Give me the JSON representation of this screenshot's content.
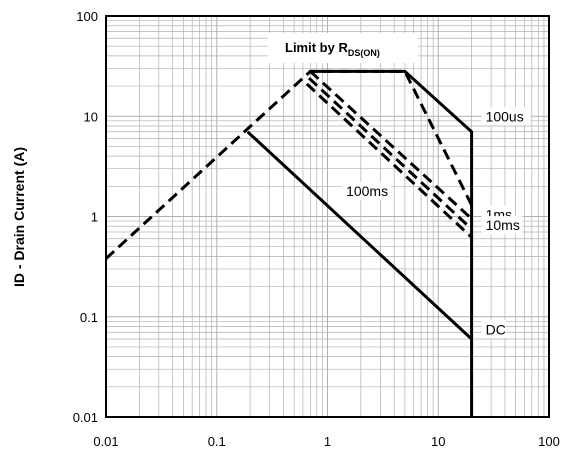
{
  "chart_data": {
    "type": "line",
    "title": "",
    "xlabel": "",
    "ylabel": "ID - Drain Current (A)",
    "x_scale": "log",
    "y_scale": "log",
    "xlim": [
      0.01,
      100
    ],
    "ylim": [
      0.01,
      100
    ],
    "x_ticks": [
      "0.01",
      "0.1",
      "1",
      "10",
      "100"
    ],
    "y_ticks": [
      "100",
      "10",
      "1",
      "0.1",
      "0.01"
    ],
    "grid": true,
    "limit_label": {
      "main": "Limit by R",
      "sub": "DS(ON)"
    },
    "series": [
      {
        "name": "100us",
        "style": "dashed",
        "points": [
          [
            0.01,
            0.38
          ],
          [
            0.7,
            28
          ],
          [
            5,
            28
          ],
          [
            20,
            1.3
          ]
        ]
      },
      {
        "name": "1ms",
        "style": "dashed",
        "points": [
          [
            0.7,
            28
          ],
          [
            20,
            0.95
          ]
        ]
      },
      {
        "name": "10ms",
        "style": "dashed",
        "points": [
          [
            0.68,
            24
          ],
          [
            20,
            0.75
          ]
        ]
      },
      {
        "name": "100ms",
        "style": "dashed",
        "points": [
          [
            0.65,
            21
          ],
          [
            20,
            0.62
          ]
        ]
      },
      {
        "name": "DC",
        "style": "solid",
        "points": [
          [
            0.19,
            7
          ],
          [
            20,
            0.06
          ]
        ]
      },
      {
        "name": "",
        "style": "solid",
        "points": [
          [
            0.7,
            28
          ],
          [
            5,
            28
          ],
          [
            20,
            7
          ],
          [
            20,
            0.01
          ]
        ]
      }
    ],
    "annotations": [
      {
        "text": "100us",
        "x": 20,
        "y": 10
      },
      {
        "text": "100ms",
        "x": 1.1,
        "y": 1.8
      },
      {
        "text": "1ms",
        "x": 20,
        "y": 1.05
      },
      {
        "text": "10ms",
        "x": 20,
        "y": 0.82
      },
      {
        "text": "DC",
        "x": 20,
        "y": 0.075
      }
    ],
    "colors": {
      "line": "#000000",
      "grid": "#b0b0b0",
      "background": "#ffffff"
    }
  }
}
